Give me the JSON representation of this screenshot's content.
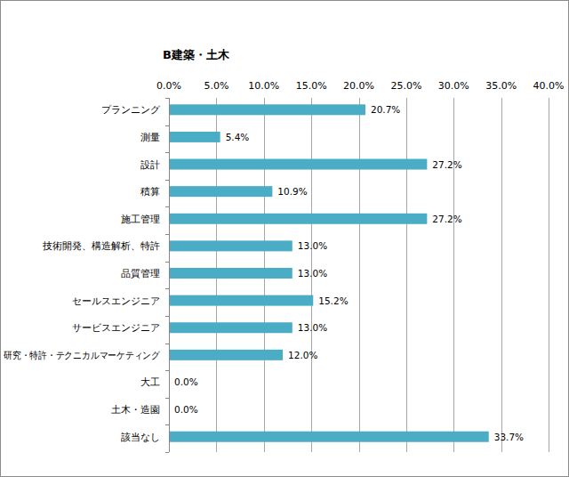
{
  "chart_data": {
    "type": "bar",
    "title": "B建築・土木",
    "orientation": "horizontal",
    "categories": [
      "プランニング",
      "測量",
      "設計",
      "積算",
      "施工管理",
      "技術開発、構造解析、特許",
      "品質管理",
      "セールスエンジニア",
      "サービスエンジニア",
      "研究・特許・テクニカルマーケティング",
      "大工",
      "土木・造園",
      "該当なし"
    ],
    "values": [
      20.7,
      5.4,
      27.2,
      10.9,
      27.2,
      13.0,
      13.0,
      15.2,
      13.0,
      12.0,
      0.0,
      0.0,
      33.7
    ],
    "value_labels": [
      "20.7%",
      "5.4%",
      "27.2%",
      "10.9%",
      "27.2%",
      "13.0%",
      "13.0%",
      "15.2%",
      "13.0%",
      "12.0%",
      "0.0%",
      "0.0%",
      "33.7%"
    ],
    "color": "#4bacc6",
    "xlim": [
      0,
      40
    ],
    "xticks": [
      {
        "value": 0,
        "label": "0.0%"
      },
      {
        "value": 5,
        "label": "5.0%"
      },
      {
        "value": 10,
        "label": "10.0%"
      },
      {
        "value": 15,
        "label": "15.0%"
      },
      {
        "value": 20,
        "label": "20.0%"
      },
      {
        "value": 25,
        "label": "25.0%"
      },
      {
        "value": 30,
        "label": "30.0%"
      },
      {
        "value": 35,
        "label": "35.0%"
      },
      {
        "value": 40,
        "label": "40.0%"
      }
    ],
    "grid": true,
    "data_labels": true
  }
}
